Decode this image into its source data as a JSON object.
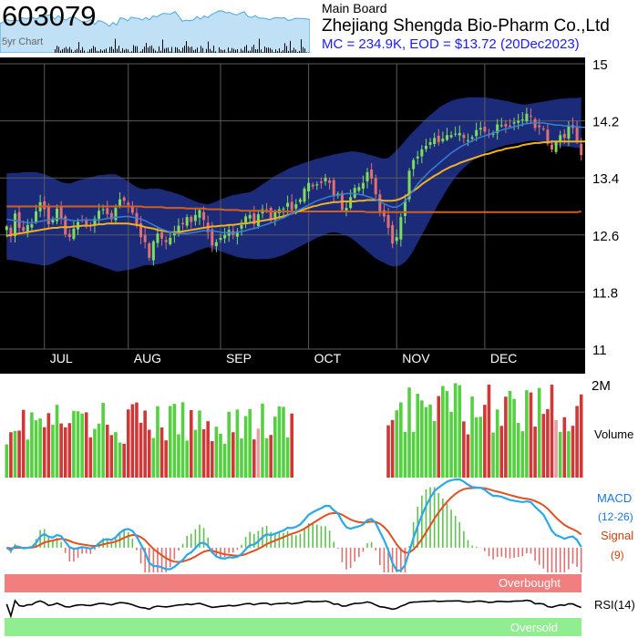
{
  "header": {
    "ticker": "603079",
    "board": "Main Board",
    "company": "Zhejiang Shengda Bio-Pharm Co.,Ltd",
    "mc_line": "MC = 234.9K, EOD = $13.72 (20Dec2023)",
    "spark_label": "5yr Chart"
  },
  "colors": {
    "background": "#000000",
    "band_fill": "#1c2a7a",
    "up_candle": "#7ddc5a",
    "down_candle": "#e07070",
    "ma_short": "#3a7fd0",
    "ma_mid": "#f0b020",
    "ma_long": "#d06020",
    "macd": "#2aa8e8",
    "signal": "#e05020",
    "overbought": "#f08080",
    "oversold": "#90ee90"
  },
  "chart_data": [
    {
      "type": "candlestick",
      "ylim": [
        11,
        15
      ],
      "y_ticks": [
        "15",
        "14.2",
        "13.4",
        "12.6",
        "11.8",
        "11"
      ],
      "months": [
        "JUL",
        "AUG",
        "SEP",
        "OCT",
        "NOV",
        "DEC"
      ],
      "grid": true,
      "close": [
        12.72,
        12.58,
        12.9,
        12.7,
        12.66,
        12.74,
        12.75,
        12.93,
        13.06,
        12.96,
        12.75,
        12.81,
        12.97,
        12.83,
        12.61,
        12.57,
        12.69,
        12.78,
        12.81,
        12.74,
        12.72,
        12.83,
        12.94,
        12.96,
        12.89,
        12.82,
        12.98,
        13.1,
        13.08,
        13.02,
        12.91,
        12.73,
        12.57,
        12.5,
        12.28,
        12.51,
        12.62,
        12.55,
        12.5,
        12.56,
        12.65,
        12.73,
        12.75,
        12.85,
        12.78,
        12.88,
        12.95,
        12.81,
        12.64,
        12.45,
        12.5,
        12.56,
        12.6,
        12.67,
        12.6,
        12.65,
        12.74,
        12.86,
        12.88,
        12.75,
        12.89,
        12.96,
        12.96,
        12.81,
        12.92,
        12.96,
        12.97,
        13.05,
        12.95,
        13.03,
        13.1,
        13.25,
        13.33,
        13.28,
        13.31,
        13.33,
        13.4,
        13.33,
        13.15,
        13.18,
        12.95,
        12.98,
        13.13,
        13.26,
        13.27,
        13.33,
        13.48,
        13.39,
        13.17,
        12.93,
        12.86,
        12.7,
        12.48,
        12.57,
        12.85,
        13.08,
        13.5,
        13.65,
        13.7,
        13.8,
        13.85,
        13.9,
        13.96,
        13.9,
        13.95,
        14.0,
        14.0,
        14.02,
        14.03,
        13.96,
        13.93,
        13.97,
        14.07,
        14.1,
        14.05,
        14.0,
        14.02,
        14.15,
        14.14,
        14.12,
        14.13,
        14.18,
        14.2,
        14.22,
        14.3,
        14.26,
        14.1,
        14.11,
        14.08,
        13.88,
        13.8,
        13.9,
        14.0,
        13.96,
        14.12,
        14.1,
        13.91,
        13.72
      ],
      "bb_upper": [
        13.46,
        13.47,
        13.47,
        13.47,
        13.48,
        13.48,
        13.48,
        13.48,
        13.47,
        13.45,
        13.43,
        13.4,
        13.37,
        13.34,
        13.33,
        13.32,
        13.34,
        13.36,
        13.38,
        13.39,
        13.41,
        13.42,
        13.44,
        13.44,
        13.45,
        13.45,
        13.45,
        13.42,
        13.39,
        13.35,
        13.31,
        13.27,
        13.25,
        13.24,
        13.25,
        13.25,
        13.25,
        13.24,
        13.22,
        13.21,
        13.19,
        13.17,
        13.15,
        13.12,
        13.1,
        13.07,
        13.05,
        13.04,
        13.03,
        13.05,
        13.07,
        13.1,
        13.12,
        13.14,
        13.16,
        13.17,
        13.18,
        13.19,
        13.2,
        13.23,
        13.27,
        13.31,
        13.35,
        13.39,
        13.43,
        13.46,
        13.49,
        13.52,
        13.55,
        13.57,
        13.59,
        13.61,
        13.63,
        13.65,
        13.67,
        13.68,
        13.7,
        13.71,
        13.73,
        13.74,
        13.75,
        13.76,
        13.77,
        13.77,
        13.76,
        13.75,
        13.73,
        13.72,
        13.7,
        13.68,
        13.67,
        13.68,
        13.73,
        13.79,
        13.85,
        13.92,
        13.99,
        14.05,
        14.11,
        14.17,
        14.23,
        14.28,
        14.33,
        14.38,
        14.42,
        14.45,
        14.48,
        14.5,
        14.51,
        14.52,
        14.53,
        14.53,
        14.53,
        14.53,
        14.53,
        14.52,
        14.51,
        14.5,
        14.49,
        14.48,
        14.47,
        14.45,
        14.44,
        14.43,
        14.43,
        14.44,
        14.45,
        14.46,
        14.47,
        14.48,
        14.49,
        14.5,
        14.51,
        14.51,
        14.52,
        14.52,
        14.52,
        14.53
      ],
      "bb_lower": [
        12.25,
        12.25,
        12.24,
        12.23,
        12.22,
        12.21,
        12.2,
        12.19,
        12.18,
        12.17,
        12.18,
        12.2,
        12.23,
        12.26,
        12.29,
        12.31,
        12.29,
        12.27,
        12.25,
        12.23,
        12.21,
        12.19,
        12.17,
        12.15,
        12.13,
        12.11,
        12.09,
        12.09,
        12.1,
        12.11,
        12.12,
        12.14,
        12.16,
        12.18,
        12.18,
        12.18,
        12.19,
        12.2,
        12.22,
        12.24,
        12.26,
        12.28,
        12.3,
        12.32,
        12.34,
        12.37,
        12.39,
        12.41,
        12.43,
        12.41,
        12.39,
        12.37,
        12.35,
        12.33,
        12.31,
        12.29,
        12.28,
        12.27,
        12.27,
        12.26,
        12.26,
        12.26,
        12.26,
        12.27,
        12.28,
        12.3,
        12.32,
        12.35,
        12.38,
        12.41,
        12.44,
        12.47,
        12.5,
        12.53,
        12.56,
        12.58,
        12.61,
        12.63,
        12.64,
        12.63,
        12.61,
        12.59,
        12.56,
        12.52,
        12.47,
        12.42,
        12.37,
        12.32,
        12.27,
        12.24,
        12.21,
        12.18,
        12.16,
        12.16,
        12.18,
        12.22,
        12.29,
        12.38,
        12.49,
        12.6,
        12.71,
        12.82,
        12.93,
        13.04,
        13.14,
        13.24,
        13.33,
        13.41,
        13.48,
        13.54,
        13.59,
        13.64,
        13.68,
        13.72,
        13.75,
        13.78,
        13.8,
        13.82,
        13.84,
        13.86,
        13.87,
        13.88,
        13.89,
        13.9,
        13.91,
        13.92,
        13.92,
        13.91,
        13.9,
        13.88,
        13.87,
        13.86,
        13.85,
        13.84,
        13.84,
        13.83,
        13.82,
        13.81,
        13.8,
        13.8
      ],
      "ma_short": [
        12.82,
        12.81,
        12.8,
        12.79,
        12.78,
        12.77,
        12.77,
        12.78,
        12.79,
        12.8,
        12.81,
        12.82,
        12.83,
        12.83,
        12.82,
        12.81,
        12.8,
        12.8,
        12.81,
        12.81,
        12.81,
        12.81,
        12.81,
        12.82,
        12.83,
        12.84,
        12.85,
        12.85,
        12.86,
        12.86,
        12.85,
        12.84,
        12.82,
        12.8,
        12.77,
        12.74,
        12.71,
        12.68,
        12.66,
        12.64,
        12.63,
        12.62,
        12.62,
        12.62,
        12.63,
        12.64,
        12.65,
        12.66,
        12.66,
        12.66,
        12.65,
        12.64,
        12.63,
        12.63,
        12.63,
        12.64,
        12.65,
        12.66,
        12.68,
        12.69,
        12.71,
        12.73,
        12.75,
        12.77,
        12.79,
        12.82,
        12.84,
        12.87,
        12.9,
        12.93,
        12.96,
        12.99,
        13.02,
        13.05,
        13.08,
        13.1,
        13.12,
        13.14,
        13.15,
        13.16,
        13.17,
        13.18,
        13.18,
        13.18,
        13.17,
        13.16,
        13.14,
        13.12,
        13.1,
        13.07,
        13.04,
        13.01,
        12.99,
        12.99,
        13.02,
        13.07,
        13.15,
        13.23,
        13.31,
        13.38,
        13.44,
        13.5,
        13.55,
        13.6,
        13.65,
        13.7,
        13.75,
        13.79,
        13.83,
        13.86,
        13.89,
        13.92,
        13.95,
        13.97,
        13.99,
        14.01,
        14.03,
        14.05,
        14.07,
        14.09,
        14.1,
        14.12,
        14.13,
        14.15,
        14.16,
        14.17,
        14.17,
        14.17,
        14.17,
        14.16,
        14.15,
        14.14,
        14.14,
        14.13,
        14.13,
        14.12,
        14.12,
        14.11,
        14.11,
        14.1
      ],
      "ma_mid": [
        12.59,
        12.6,
        12.61,
        12.62,
        12.63,
        12.64,
        12.65,
        12.66,
        12.67,
        12.68,
        12.69,
        12.7,
        12.7,
        12.71,
        12.71,
        12.71,
        12.72,
        12.72,
        12.73,
        12.73,
        12.73,
        12.74,
        12.75,
        12.75,
        12.76,
        12.76,
        12.76,
        12.76,
        12.76,
        12.76,
        12.75,
        12.74,
        12.73,
        12.71,
        12.7,
        12.69,
        12.67,
        12.66,
        12.65,
        12.64,
        12.64,
        12.64,
        12.65,
        12.66,
        12.67,
        12.68,
        12.69,
        12.7,
        12.71,
        12.72,
        12.72,
        12.73,
        12.73,
        12.74,
        12.74,
        12.75,
        12.76,
        12.76,
        12.77,
        12.78,
        12.79,
        12.8,
        12.81,
        12.82,
        12.83,
        12.85,
        12.86,
        12.88,
        12.9,
        12.92,
        12.94,
        12.96,
        12.98,
        13.0,
        13.01,
        13.03,
        13.04,
        13.05,
        13.06,
        13.06,
        13.07,
        13.07,
        13.07,
        13.07,
        13.08,
        13.08,
        13.09,
        13.09,
        13.09,
        13.09,
        13.08,
        13.08,
        13.08,
        13.09,
        13.11,
        13.14,
        13.18,
        13.22,
        13.26,
        13.31,
        13.35,
        13.39,
        13.43,
        13.46,
        13.5,
        13.53,
        13.56,
        13.58,
        13.61,
        13.63,
        13.65,
        13.67,
        13.69,
        13.71,
        13.73,
        13.74,
        13.76,
        13.78,
        13.79,
        13.81,
        13.82,
        13.83,
        13.84,
        13.86,
        13.87,
        13.88,
        13.89,
        13.89,
        13.9,
        13.9,
        13.91,
        13.91,
        13.91,
        13.91,
        13.91,
        13.91,
        13.91,
        13.91,
        13.91,
        13.9
      ],
      "ma_long": [
        13.0,
        13.0,
        13.0,
        13.0,
        13.0,
        13.0,
        13.0,
        13.0,
        13.0,
        13.0,
        13.0,
        13.0,
        13.0,
        13.0,
        13.0,
        13.0,
        13.0,
        13.0,
        13.0,
        13.0,
        13.0,
        13.0,
        13.0,
        13.0,
        13.0,
        13.0,
        13.0,
        13.0,
        13.0,
        13.0,
        13.0,
        13.0,
        13.0,
        12.99,
        12.99,
        12.99,
        12.99,
        12.99,
        12.98,
        12.98,
        12.98,
        12.98,
        12.98,
        12.97,
        12.97,
        12.97,
        12.97,
        12.97,
        12.96,
        12.96,
        12.96,
        12.96,
        12.95,
        12.95,
        12.95,
        12.95,
        12.94,
        12.94,
        12.94,
        12.94,
        12.94,
        12.94,
        12.93,
        12.93,
        12.93,
        12.93,
        12.93,
        12.93,
        12.93,
        12.93,
        12.93,
        12.93,
        12.93,
        12.93,
        12.93,
        12.93,
        12.93,
        12.93,
        12.93,
        12.93,
        12.93,
        12.93,
        12.93,
        12.93,
        12.93,
        12.93,
        12.92,
        12.92,
        12.92,
        12.92,
        12.92,
        12.92,
        12.92,
        12.92,
        12.92,
        12.92,
        12.92,
        12.92,
        12.92,
        12.92,
        12.92,
        12.92,
        12.92,
        12.92,
        12.92,
        12.92,
        12.92,
        12.92,
        12.92,
        12.92,
        12.92,
        12.92,
        12.92,
        12.92,
        12.92,
        12.92,
        12.92,
        12.92,
        12.92,
        12.92,
        12.92,
        12.92,
        12.92,
        12.92,
        12.92,
        12.92,
        12.92,
        12.92,
        12.92,
        12.92,
        12.92,
        12.92,
        12.92,
        12.92,
        12.92,
        12.92,
        12.92,
        12.93
      ]
    },
    {
      "type": "bar",
      "label": "Volume",
      "max_label": "2M",
      "ylim": [
        0,
        2000000
      ]
    },
    {
      "type": "line",
      "label": "MACD",
      "label_params": "(12-26)",
      "signal_label": "Signal",
      "signal_params": "(9)"
    },
    {
      "type": "line",
      "label": "RSI(14)",
      "overbought_label": "Overbought",
      "oversold_label": "Oversold",
      "ylim": [
        0,
        100
      ]
    }
  ]
}
